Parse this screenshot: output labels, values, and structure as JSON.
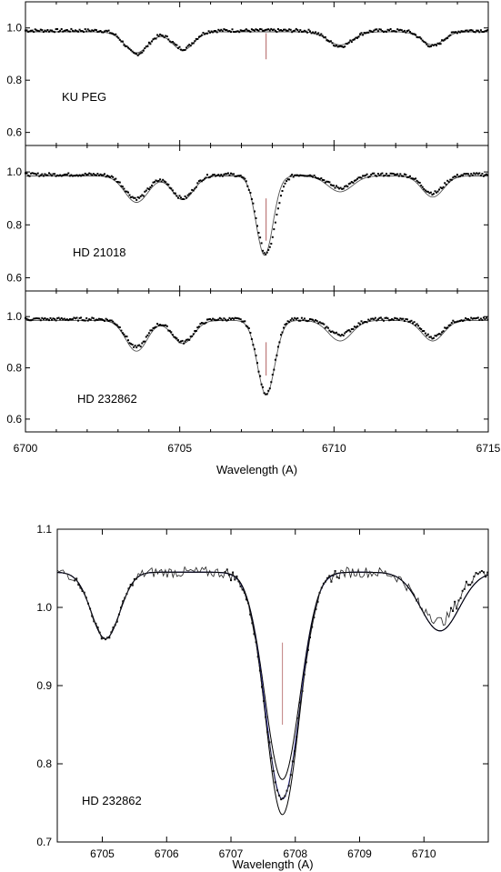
{
  "chart_data": [
    {
      "type": "line",
      "xlabel": "Wavelength (A)",
      "xlim": [
        6700,
        6715
      ],
      "x_ticks": [
        "6700",
        "6705",
        "6710",
        "6715"
      ],
      "panels": [
        {
          "label": "KU PEG",
          "ylim": [
            0.55,
            1.1
          ],
          "y_ticks": [
            "0.6",
            "0.8",
            "1.0"
          ],
          "li_marker": {
            "x": 6707.8,
            "y_from": 0.88,
            "y_to": 0.98
          },
          "lines": [
            {
              "center": 6703.6,
              "depth": 0.09,
              "width": 0.38
            },
            {
              "center": 6705.1,
              "depth": 0.07,
              "width": 0.35
            },
            {
              "center": 6710.2,
              "depth": 0.06,
              "width": 0.4
            },
            {
              "center": 6713.2,
              "depth": 0.06,
              "width": 0.35
            }
          ],
          "model_lines": [
            {
              "center": 6703.6,
              "depth": 0.08,
              "width": 0.38
            },
            {
              "center": 6705.1,
              "depth": 0.07,
              "width": 0.35
            },
            {
              "center": 6710.2,
              "depth": 0.05,
              "width": 0.4
            },
            {
              "center": 6713.2,
              "depth": 0.05,
              "width": 0.35
            }
          ]
        },
        {
          "label": "HD 21018",
          "ylim": [
            0.55,
            1.1
          ],
          "y_ticks": [
            "0.6",
            "0.8",
            "1.0"
          ],
          "li_marker": {
            "x": 6707.8,
            "y_from": 0.74,
            "y_to": 0.9
          },
          "lines": [
            {
              "center": 6703.6,
              "depth": 0.09,
              "width": 0.38
            },
            {
              "center": 6705.1,
              "depth": 0.09,
              "width": 0.35
            },
            {
              "center": 6707.8,
              "depth": 0.3,
              "width": 0.3
            },
            {
              "center": 6710.2,
              "depth": 0.05,
              "width": 0.4
            },
            {
              "center": 6713.2,
              "depth": 0.07,
              "width": 0.35
            }
          ],
          "model_lines": [
            {
              "center": 6703.6,
              "depth": 0.1,
              "width": 0.38
            },
            {
              "center": 6705.1,
              "depth": 0.09,
              "width": 0.35
            },
            {
              "center": 6707.75,
              "depth": 0.3,
              "width": 0.27
            },
            {
              "center": 6710.2,
              "depth": 0.06,
              "width": 0.4
            },
            {
              "center": 6713.2,
              "depth": 0.08,
              "width": 0.35
            }
          ]
        },
        {
          "label": "HD 232862",
          "ylim": [
            0.55,
            1.1
          ],
          "y_ticks": [
            "0.6",
            "0.8",
            "1.0"
          ],
          "li_marker": {
            "x": 6707.8,
            "y_from": 0.77,
            "y_to": 0.9
          },
          "lines": [
            {
              "center": 6703.6,
              "depth": 0.11,
              "width": 0.35
            },
            {
              "center": 6705.1,
              "depth": 0.09,
              "width": 0.35
            },
            {
              "center": 6707.8,
              "depth": 0.29,
              "width": 0.28
            },
            {
              "center": 6710.2,
              "depth": 0.06,
              "width": 0.4
            },
            {
              "center": 6713.2,
              "depth": 0.07,
              "width": 0.35
            }
          ],
          "model_lines": [
            {
              "center": 6703.6,
              "depth": 0.12,
              "width": 0.35
            },
            {
              "center": 6705.1,
              "depth": 0.09,
              "width": 0.35
            },
            {
              "center": 6707.8,
              "depth": 0.29,
              "width": 0.28
            },
            {
              "center": 6710.2,
              "depth": 0.08,
              "width": 0.38
            },
            {
              "center": 6713.2,
              "depth": 0.08,
              "width": 0.35
            }
          ]
        }
      ]
    },
    {
      "type": "line",
      "label": "HD 232862",
      "xlabel": "Wavelength (A)",
      "xlim": [
        6704.3,
        6711
      ],
      "ylim": [
        0.7,
        1.1
      ],
      "x_ticks": [
        "6705",
        "6706",
        "6707",
        "6708",
        "6709",
        "6710"
      ],
      "y_ticks": [
        "0.7",
        "0.8",
        "0.9",
        "1.0",
        "1.1"
      ],
      "li_marker": {
        "x": 6707.8,
        "y_from": 0.85,
        "y_to": 0.955
      },
      "continuum": 1.045,
      "blends": [
        {
          "center": 6705.05,
          "depth": 0.085,
          "width": 0.22
        },
        {
          "center": 6710.25,
          "depth": 0.075,
          "width": 0.3
        }
      ],
      "models": [
        {
          "color": "#000000",
          "li_depth": 0.265,
          "li_width": 0.27
        },
        {
          "color": "#1a1a9e",
          "li_depth": 0.29,
          "li_width": 0.265
        },
        {
          "color": "#000000",
          "li_depth": 0.31,
          "li_width": 0.26
        }
      ],
      "observed": {
        "li_depth": 0.29,
        "li_width": 0.27
      }
    }
  ]
}
